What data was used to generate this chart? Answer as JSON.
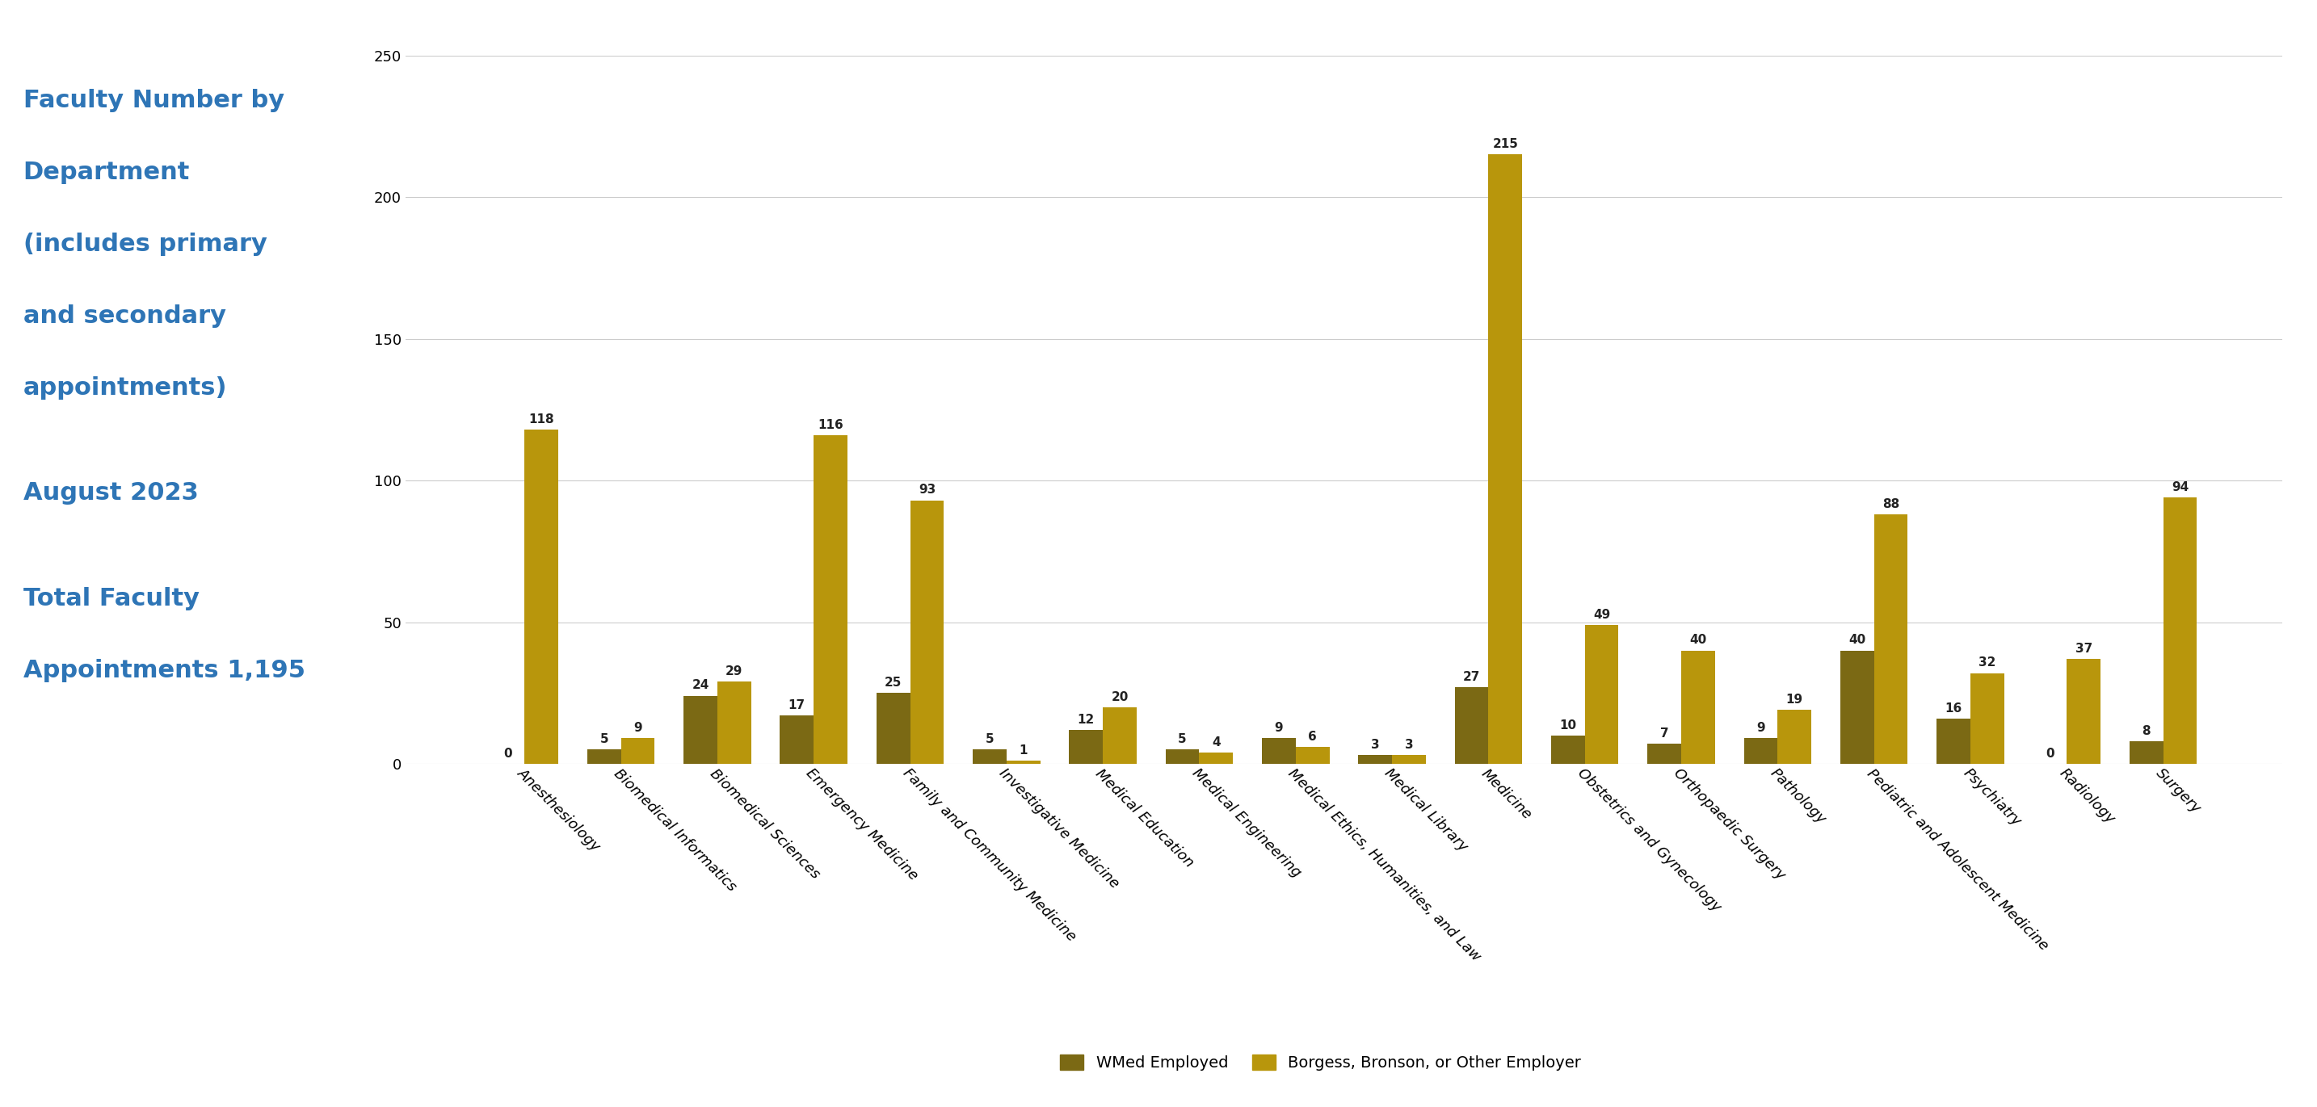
{
  "departments": [
    "Anesthesiology",
    "Biomedical Informatics",
    "Biomedical Sciences",
    "Emergency Medicine",
    "Family and Community Medicine",
    "Investigative Medicine",
    "Medical Education",
    "Medical Engineering",
    "Medical Ethics, Humanities, and Law",
    "Medical Library",
    "Medicine",
    "Obstetrics and Gynecology",
    "Orthopaedic Surgery",
    "Pathology",
    "Pediatric and Adolescent Medicine",
    "Psychiatry",
    "Radiology",
    "Surgery"
  ],
  "wmed_employed": [
    0,
    5,
    24,
    17,
    25,
    5,
    12,
    5,
    9,
    3,
    27,
    10,
    7,
    9,
    40,
    16,
    0,
    8
  ],
  "borgess_other": [
    118,
    9,
    29,
    116,
    93,
    1,
    20,
    4,
    6,
    3,
    215,
    49,
    40,
    19,
    88,
    32,
    37,
    94
  ],
  "wmed_color": "#7B6914",
  "borgess_color": "#B8960C",
  "title_lines": [
    "Faculty Number by",
    "Department",
    "(includes primary",
    "and secondary",
    "appointments)"
  ],
  "subtitle_lines": [
    "August 2023"
  ],
  "footer_lines": [
    "Total Faculty",
    "Appointments 1,195"
  ],
  "title_color": "#2E75B6",
  "background_color": "#FFFFFF",
  "ylim": [
    0,
    250
  ],
  "yticks": [
    0,
    50,
    100,
    150,
    200,
    250
  ],
  "legend_wmed": "WMed Employed",
  "legend_borgess": "Borgess, Bronson, or Other Employer",
  "bar_width": 0.35,
  "title_fontsize": 22,
  "subtitle_fontsize": 22,
  "footer_fontsize": 22,
  "label_fontsize": 11,
  "tick_fontsize": 13,
  "legend_fontsize": 14
}
